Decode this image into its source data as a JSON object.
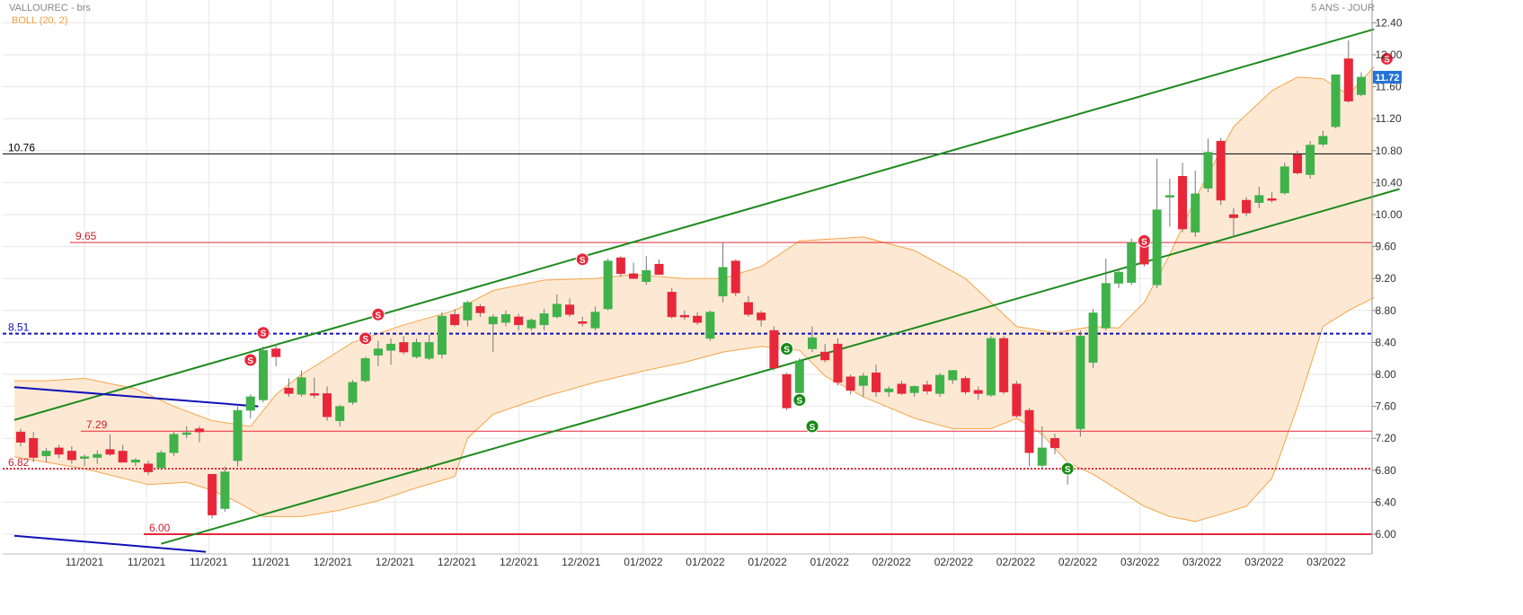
{
  "header": {
    "title": "VALLOUREC - brs",
    "period": "5 ANS - JOUR",
    "indicator": "BOLL (20, 2)"
  },
  "colors": {
    "up": "#3fb24a",
    "down": "#e8273a",
    "band_fill": "#fde9d3",
    "band_line": "#f5a54a",
    "channel": "#1c8a1c",
    "blue_line": "#1010b8",
    "support_line": "#e8273a",
    "grid": "#e6e6e6",
    "signal_sell": "#e8273a",
    "signal_buy": "#178a17"
  },
  "chart_data": {
    "type": "candlestick",
    "title": "VALLOUREC - brs",
    "y_axis_side": "right",
    "ylim": [
      5.9,
      12.55
    ],
    "yticks": [
      "12.40",
      "12.00",
      "11.60",
      "11.20",
      "10.80",
      "10.40",
      "10.00",
      "9.60",
      "9.20",
      "8.80",
      "8.40",
      "8.00",
      "7.60",
      "7.20",
      "6.80",
      "6.40",
      "6.00"
    ],
    "x_tick_labels": [
      "11/2021",
      "11/2021",
      "11/2021",
      "11/2021",
      "12/2021",
      "12/2021",
      "12/2021",
      "12/2021",
      "12/2021",
      "01/2022",
      "01/2022",
      "01/2022",
      "01/2022",
      "02/2022",
      "02/2022",
      "02/2022",
      "02/2022",
      "03/2022",
      "03/2022",
      "03/2022",
      "03/2022"
    ],
    "last_price": "11.72",
    "candles": [
      {
        "o": 7.28,
        "h": 7.32,
        "l": 7.1,
        "c": 7.15
      },
      {
        "o": 7.2,
        "h": 7.28,
        "l": 6.9,
        "c": 6.96
      },
      {
        "o": 6.98,
        "h": 7.08,
        "l": 6.9,
        "c": 7.04
      },
      {
        "o": 7.08,
        "h": 7.12,
        "l": 6.95,
        "c": 7.0
      },
      {
        "o": 7.04,
        "h": 7.1,
        "l": 6.88,
        "c": 6.93
      },
      {
        "o": 6.95,
        "h": 7.0,
        "l": 6.85,
        "c": 6.97
      },
      {
        "o": 6.96,
        "h": 7.05,
        "l": 6.88,
        "c": 7.0
      },
      {
        "o": 7.06,
        "h": 7.25,
        "l": 6.98,
        "c": 7.0
      },
      {
        "o": 7.04,
        "h": 7.12,
        "l": 6.92,
        "c": 6.9
      },
      {
        "o": 6.9,
        "h": 6.95,
        "l": 6.85,
        "c": 6.93
      },
      {
        "o": 6.88,
        "h": 6.92,
        "l": 6.74,
        "c": 6.78
      },
      {
        "o": 6.83,
        "h": 7.05,
        "l": 6.8,
        "c": 7.02
      },
      {
        "o": 7.02,
        "h": 7.28,
        "l": 6.98,
        "c": 7.25
      },
      {
        "o": 7.26,
        "h": 7.35,
        "l": 7.2,
        "c": 7.27
      },
      {
        "o": 7.32,
        "h": 7.35,
        "l": 7.15,
        "c": 7.28
      },
      {
        "o": 6.75,
        "h": 6.75,
        "l": 6.2,
        "c": 6.24
      },
      {
        "o": 6.32,
        "h": 6.85,
        "l": 6.28,
        "c": 6.78
      },
      {
        "o": 6.92,
        "h": 7.6,
        "l": 6.85,
        "c": 7.55
      },
      {
        "o": 7.55,
        "h": 7.75,
        "l": 7.45,
        "c": 7.72
      },
      {
        "o": 7.68,
        "h": 8.35,
        "l": 7.65,
        "c": 8.3
      },
      {
        "o": 8.32,
        "h": 8.38,
        "l": 8.1,
        "c": 8.22
      },
      {
        "o": 7.83,
        "h": 7.95,
        "l": 7.72,
        "c": 7.76
      },
      {
        "o": 7.75,
        "h": 8.05,
        "l": 7.72,
        "c": 7.96
      },
      {
        "o": 7.76,
        "h": 7.96,
        "l": 7.7,
        "c": 7.74
      },
      {
        "o": 7.76,
        "h": 7.85,
        "l": 7.42,
        "c": 7.47
      },
      {
        "o": 7.42,
        "h": 7.62,
        "l": 7.35,
        "c": 7.6
      },
      {
        "o": 7.65,
        "h": 7.93,
        "l": 7.62,
        "c": 7.9
      },
      {
        "o": 7.92,
        "h": 8.22,
        "l": 7.9,
        "c": 8.2
      },
      {
        "o": 8.24,
        "h": 8.42,
        "l": 8.1,
        "c": 8.32
      },
      {
        "o": 8.3,
        "h": 8.45,
        "l": 8.12,
        "c": 8.38
      },
      {
        "o": 8.4,
        "h": 8.48,
        "l": 8.25,
        "c": 8.28
      },
      {
        "o": 8.22,
        "h": 8.45,
        "l": 8.2,
        "c": 8.4
      },
      {
        "o": 8.2,
        "h": 8.5,
        "l": 8.18,
        "c": 8.4
      },
      {
        "o": 8.25,
        "h": 8.78,
        "l": 8.2,
        "c": 8.73
      },
      {
        "o": 8.75,
        "h": 8.82,
        "l": 8.6,
        "c": 8.62
      },
      {
        "o": 8.68,
        "h": 8.92,
        "l": 8.6,
        "c": 8.9
      },
      {
        "o": 8.85,
        "h": 8.88,
        "l": 8.72,
        "c": 8.77
      },
      {
        "o": 8.63,
        "h": 8.75,
        "l": 8.28,
        "c": 8.72
      },
      {
        "o": 8.65,
        "h": 8.8,
        "l": 8.6,
        "c": 8.75
      },
      {
        "o": 8.72,
        "h": 8.76,
        "l": 8.55,
        "c": 8.62
      },
      {
        "o": 8.58,
        "h": 8.7,
        "l": 8.55,
        "c": 8.68
      },
      {
        "o": 8.62,
        "h": 8.82,
        "l": 8.55,
        "c": 8.76
      },
      {
        "o": 8.72,
        "h": 9.0,
        "l": 8.7,
        "c": 8.88
      },
      {
        "o": 8.87,
        "h": 8.95,
        "l": 8.72,
        "c": 8.75
      },
      {
        "o": 8.66,
        "h": 8.72,
        "l": 8.6,
        "c": 8.64
      },
      {
        "o": 8.58,
        "h": 8.85,
        "l": 8.55,
        "c": 8.78
      },
      {
        "o": 8.82,
        "h": 9.45,
        "l": 8.8,
        "c": 9.42
      },
      {
        "o": 9.46,
        "h": 9.48,
        "l": 9.22,
        "c": 9.26
      },
      {
        "o": 9.26,
        "h": 9.4,
        "l": 9.2,
        "c": 9.2
      },
      {
        "o": 9.16,
        "h": 9.48,
        "l": 9.12,
        "c": 9.3
      },
      {
        "o": 9.38,
        "h": 9.44,
        "l": 9.25,
        "c": 9.25
      },
      {
        "o": 9.03,
        "h": 9.08,
        "l": 8.7,
        "c": 8.72
      },
      {
        "o": 8.74,
        "h": 8.8,
        "l": 8.68,
        "c": 8.72
      },
      {
        "o": 8.73,
        "h": 8.78,
        "l": 8.62,
        "c": 8.65
      },
      {
        "o": 8.45,
        "h": 8.8,
        "l": 8.42,
        "c": 8.78
      },
      {
        "o": 8.98,
        "h": 9.65,
        "l": 8.9,
        "c": 9.34
      },
      {
        "o": 9.42,
        "h": 9.44,
        "l": 8.98,
        "c": 9.02
      },
      {
        "o": 8.9,
        "h": 8.98,
        "l": 8.72,
        "c": 8.75
      },
      {
        "o": 8.77,
        "h": 8.8,
        "l": 8.6,
        "c": 8.68
      },
      {
        "o": 8.55,
        "h": 8.6,
        "l": 8.05,
        "c": 8.08
      },
      {
        "o": 8.0,
        "h": 8.02,
        "l": 7.55,
        "c": 7.58
      },
      {
        "o": 7.77,
        "h": 8.2,
        "l": 7.75,
        "c": 8.17
      },
      {
        "o": 8.32,
        "h": 8.6,
        "l": 8.28,
        "c": 8.46
      },
      {
        "o": 8.28,
        "h": 8.38,
        "l": 8.15,
        "c": 8.18
      },
      {
        "o": 8.38,
        "h": 8.45,
        "l": 7.86,
        "c": 7.9
      },
      {
        "o": 7.97,
        "h": 8.0,
        "l": 7.75,
        "c": 7.8
      },
      {
        "o": 7.86,
        "h": 8.02,
        "l": 7.72,
        "c": 7.98
      },
      {
        "o": 8.02,
        "h": 8.12,
        "l": 7.72,
        "c": 7.78
      },
      {
        "o": 7.78,
        "h": 7.85,
        "l": 7.72,
        "c": 7.82
      },
      {
        "o": 7.88,
        "h": 7.92,
        "l": 7.74,
        "c": 7.76
      },
      {
        "o": 7.77,
        "h": 7.86,
        "l": 7.72,
        "c": 7.85
      },
      {
        "o": 7.87,
        "h": 7.92,
        "l": 7.75,
        "c": 7.79
      },
      {
        "o": 7.76,
        "h": 8.02,
        "l": 7.72,
        "c": 7.99
      },
      {
        "o": 7.93,
        "h": 8.05,
        "l": 7.88,
        "c": 8.05
      },
      {
        "o": 7.95,
        "h": 7.98,
        "l": 7.75,
        "c": 7.78
      },
      {
        "o": 7.8,
        "h": 7.85,
        "l": 7.68,
        "c": 7.76
      },
      {
        "o": 7.74,
        "h": 8.48,
        "l": 7.72,
        "c": 8.45
      },
      {
        "o": 8.45,
        "h": 8.48,
        "l": 7.75,
        "c": 7.78
      },
      {
        "o": 7.88,
        "h": 7.92,
        "l": 7.46,
        "c": 7.48
      },
      {
        "o": 7.55,
        "h": 7.58,
        "l": 6.85,
        "c": 7.02
      },
      {
        "o": 6.86,
        "h": 7.35,
        "l": 6.82,
        "c": 7.08
      },
      {
        "o": 7.2,
        "h": 7.26,
        "l": 7.0,
        "c": 7.08
      },
      {
        "o": 6.8,
        "h": 6.82,
        "l": 6.62,
        "c": 6.76
      },
      {
        "o": 7.32,
        "h": 8.55,
        "l": 7.22,
        "c": 8.48
      },
      {
        "o": 8.15,
        "h": 8.82,
        "l": 8.08,
        "c": 8.77
      },
      {
        "o": 8.58,
        "h": 9.45,
        "l": 8.55,
        "c": 9.14
      },
      {
        "o": 9.14,
        "h": 9.32,
        "l": 9.08,
        "c": 9.28
      },
      {
        "o": 9.15,
        "h": 9.7,
        "l": 9.12,
        "c": 9.65
      },
      {
        "o": 9.7,
        "h": 9.75,
        "l": 9.35,
        "c": 9.38
      },
      {
        "o": 9.12,
        "h": 10.7,
        "l": 9.08,
        "c": 10.06
      },
      {
        "o": 10.22,
        "h": 10.45,
        "l": 9.85,
        "c": 10.24
      },
      {
        "o": 10.48,
        "h": 10.65,
        "l": 9.78,
        "c": 9.82
      },
      {
        "o": 9.78,
        "h": 10.55,
        "l": 9.72,
        "c": 10.26
      },
      {
        "o": 10.33,
        "h": 10.95,
        "l": 10.28,
        "c": 10.78
      },
      {
        "o": 10.92,
        "h": 10.96,
        "l": 10.12,
        "c": 10.18
      },
      {
        "o": 10.0,
        "h": 10.08,
        "l": 9.72,
        "c": 9.96
      },
      {
        "o": 10.18,
        "h": 10.22,
        "l": 9.98,
        "c": 10.02
      },
      {
        "o": 10.15,
        "h": 10.35,
        "l": 10.08,
        "c": 10.24
      },
      {
        "o": 10.2,
        "h": 10.28,
        "l": 10.15,
        "c": 10.18
      },
      {
        "o": 10.27,
        "h": 10.65,
        "l": 10.25,
        "c": 10.6
      },
      {
        "o": 10.75,
        "h": 10.8,
        "l": 10.5,
        "c": 10.52
      },
      {
        "o": 10.5,
        "h": 10.92,
        "l": 10.45,
        "c": 10.87
      },
      {
        "o": 10.88,
        "h": 11.05,
        "l": 10.85,
        "c": 10.98
      },
      {
        "o": 11.1,
        "h": 11.75,
        "l": 11.08,
        "c": 11.75
      },
      {
        "o": 11.95,
        "h": 12.18,
        "l": 11.4,
        "c": 11.42
      },
      {
        "o": 11.5,
        "h": 11.78,
        "l": 11.48,
        "c": 11.72
      }
    ],
    "bollinger": {
      "upper": [
        [
          -0.5,
          7.92
        ],
        [
          2,
          7.92
        ],
        [
          5,
          7.95
        ],
        [
          9,
          7.82
        ],
        [
          12,
          7.6
        ],
        [
          15,
          7.42
        ],
        [
          18,
          7.35
        ],
        [
          20,
          7.75
        ],
        [
          22,
          8.0
        ],
        [
          26,
          8.4
        ],
        [
          30,
          8.62
        ],
        [
          34,
          8.8
        ],
        [
          37,
          9.05
        ],
        [
          41,
          9.18
        ],
        [
          45,
          9.2
        ],
        [
          48,
          9.25
        ],
        [
          52,
          9.2
        ],
        [
          55,
          9.2
        ],
        [
          58,
          9.35
        ],
        [
          61,
          9.67
        ],
        [
          66,
          9.72
        ],
        [
          70,
          9.55
        ],
        [
          74,
          9.2
        ],
        [
          78,
          8.6
        ],
        [
          81,
          8.52
        ],
        [
          84,
          8.6
        ],
        [
          86,
          8.58
        ],
        [
          88,
          8.9
        ],
        [
          90,
          9.5
        ],
        [
          92,
          10.2
        ],
        [
          95,
          11.1
        ],
        [
          98,
          11.55
        ],
        [
          100,
          11.72
        ],
        [
          102,
          11.7
        ],
        [
          104,
          11.5
        ],
        [
          106,
          11.85
        ]
      ],
      "lower": [
        [
          -0.5,
          6.97
        ],
        [
          2,
          6.9
        ],
        [
          5,
          6.82
        ],
        [
          8,
          6.7
        ],
        [
          10,
          6.62
        ],
        [
          13,
          6.65
        ],
        [
          15,
          6.55
        ],
        [
          17,
          6.4
        ],
        [
          19,
          6.22
        ],
        [
          22,
          6.22
        ],
        [
          25,
          6.3
        ],
        [
          28,
          6.42
        ],
        [
          31,
          6.58
        ],
        [
          34,
          6.72
        ],
        [
          35,
          7.2
        ],
        [
          37,
          7.5
        ],
        [
          41,
          7.72
        ],
        [
          45,
          7.9
        ],
        [
          49,
          8.05
        ],
        [
          52,
          8.15
        ],
        [
          55,
          8.28
        ],
        [
          58,
          8.35
        ],
        [
          61,
          8.3
        ],
        [
          63,
          7.98
        ],
        [
          66,
          7.72
        ],
        [
          70,
          7.45
        ],
        [
          73,
          7.32
        ],
        [
          76,
          7.32
        ],
        [
          78,
          7.45
        ],
        [
          80,
          7.25
        ],
        [
          82,
          6.9
        ],
        [
          84,
          6.75
        ],
        [
          86,
          6.55
        ],
        [
          88,
          6.35
        ],
        [
          90,
          6.22
        ],
        [
          92,
          6.16
        ],
        [
          94,
          6.25
        ],
        [
          96,
          6.35
        ],
        [
          98,
          6.7
        ],
        [
          100,
          7.6
        ],
        [
          102,
          8.6
        ],
        [
          104,
          8.8
        ],
        [
          106,
          8.96
        ]
      ]
    },
    "horizontal_lines": [
      {
        "label": "10.76",
        "value": 10.76,
        "style": "solid",
        "color": "#000000"
      },
      {
        "label": "9.65",
        "value": 9.65,
        "style": "solid",
        "color": "#e8273a"
      },
      {
        "label": "8.51",
        "value": 8.51,
        "style": "dashed",
        "color": "#1010b8"
      },
      {
        "label": "7.29",
        "value": 7.29,
        "style": "solid",
        "color": "#e8273a"
      },
      {
        "label": "6.82",
        "value": 6.82,
        "style": "dotted",
        "color": "#e8273a"
      },
      {
        "label": "6.00",
        "value": 6.0,
        "style": "solid",
        "color": "#e8273a"
      }
    ],
    "trend_lines": [
      {
        "from": [
          -0.5,
          7.43
        ],
        "to": [
          106,
          12.32
        ],
        "color": "channel"
      },
      {
        "from": [
          11,
          5.88
        ],
        "to": [
          108,
          10.32
        ],
        "color": "channel"
      },
      {
        "from": [
          -0.5,
          7.84
        ],
        "to": [
          18.6,
          7.6
        ],
        "color": "blue_line"
      },
      {
        "from": [
          -0.5,
          5.98
        ],
        "to": [
          14.5,
          5.78
        ],
        "color": "blue_line"
      }
    ],
    "signals": [
      {
        "i": 19,
        "v": 8.52,
        "type": "sell"
      },
      {
        "i": 18,
        "v": 8.18,
        "type": "sell"
      },
      {
        "i": 28,
        "v": 8.75,
        "type": "sell"
      },
      {
        "i": 27,
        "v": 8.45,
        "type": "sell"
      },
      {
        "i": 44,
        "v": 9.44,
        "type": "sell"
      },
      {
        "i": 60,
        "v": 8.32,
        "type": "buy"
      },
      {
        "i": 61,
        "v": 7.68,
        "type": "buy"
      },
      {
        "i": 62,
        "v": 7.35,
        "type": "buy"
      },
      {
        "i": 82,
        "v": 6.82,
        "type": "buy"
      },
      {
        "i": 88,
        "v": 9.67,
        "type": "sell"
      },
      {
        "i": 107,
        "v": 11.95,
        "type": "sell"
      }
    ]
  }
}
